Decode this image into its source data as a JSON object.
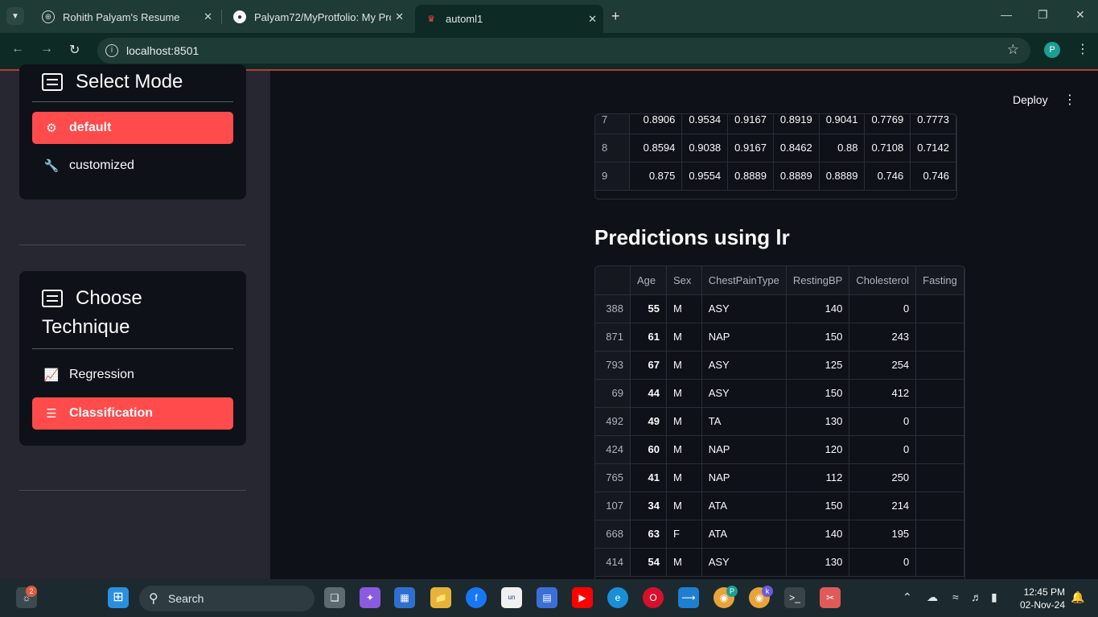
{
  "browser": {
    "tabs": [
      {
        "title": "Rohith Palyam's Resume",
        "favicon": "globe-icon"
      },
      {
        "title": "Palyam72/MyProtfolio: My Prot",
        "favicon": "github-icon"
      },
      {
        "title": "automl1",
        "favicon": "streamlit-icon"
      }
    ],
    "url": "localhost:8501",
    "profile_initial": "P"
  },
  "sidebar": {
    "mode": {
      "title": "Select Mode",
      "options": [
        {
          "label": "default",
          "icon": "gear-icon",
          "selected": true
        },
        {
          "label": "customized",
          "icon": "wrench-icon",
          "selected": false
        }
      ]
    },
    "technique": {
      "title_line1": "Choose",
      "title_line2": "Technique",
      "options": [
        {
          "label": "Regression",
          "icon": "line-chart-icon",
          "selected": false
        },
        {
          "label": "Classification",
          "icon": "list-icon",
          "selected": true
        }
      ]
    }
  },
  "header": {
    "deploy_label": "Deploy"
  },
  "scores_table": {
    "rows": [
      {
        "index": "7",
        "values": [
          "0.8906",
          "0.9534",
          "0.9167",
          "0.8919",
          "0.9041",
          "0.7769",
          "0.7773"
        ]
      },
      {
        "index": "8",
        "values": [
          "0.8594",
          "0.9038",
          "0.9167",
          "0.8462",
          "0.88",
          "0.7108",
          "0.7142"
        ]
      },
      {
        "index": "9",
        "values": [
          "0.875",
          "0.9554",
          "0.8889",
          "0.8889",
          "0.8889",
          "0.746",
          "0.746"
        ]
      }
    ]
  },
  "predictions": {
    "title": "Predictions using lr",
    "columns": [
      "Age",
      "Sex",
      "ChestPainType",
      "RestingBP",
      "Cholesterol",
      "Fasting"
    ],
    "rows": [
      {
        "index": "388",
        "Age": "55",
        "Sex": "M",
        "ChestPainType": "ASY",
        "RestingBP": "140",
        "Cholesterol": "0"
      },
      {
        "index": "871",
        "Age": "61",
        "Sex": "M",
        "ChestPainType": "NAP",
        "RestingBP": "150",
        "Cholesterol": "243"
      },
      {
        "index": "793",
        "Age": "67",
        "Sex": "M",
        "ChestPainType": "ASY",
        "RestingBP": "125",
        "Cholesterol": "254"
      },
      {
        "index": "69",
        "Age": "44",
        "Sex": "M",
        "ChestPainType": "ASY",
        "RestingBP": "150",
        "Cholesterol": "412"
      },
      {
        "index": "492",
        "Age": "49",
        "Sex": "M",
        "ChestPainType": "TA",
        "RestingBP": "130",
        "Cholesterol": "0"
      },
      {
        "index": "424",
        "Age": "60",
        "Sex": "M",
        "ChestPainType": "NAP",
        "RestingBP": "120",
        "Cholesterol": "0"
      },
      {
        "index": "765",
        "Age": "41",
        "Sex": "M",
        "ChestPainType": "NAP",
        "RestingBP": "112",
        "Cholesterol": "250"
      },
      {
        "index": "107",
        "Age": "34",
        "Sex": "M",
        "ChestPainType": "ATA",
        "RestingBP": "150",
        "Cholesterol": "214"
      },
      {
        "index": "668",
        "Age": "63",
        "Sex": "F",
        "ChestPainType": "ATA",
        "RestingBP": "140",
        "Cholesterol": "195"
      },
      {
        "index": "414",
        "Age": "54",
        "Sex": "M",
        "ChestPainType": "ASY",
        "RestingBP": "130",
        "Cholesterol": "0"
      }
    ]
  },
  "taskbar": {
    "search_label": "Search",
    "widget_badge": "2",
    "time": "12:45 PM",
    "date": "02-Nov-24",
    "chrome_profile_badges": [
      "P",
      "k"
    ]
  },
  "colors": {
    "accent": "#ff4b4b",
    "sidebar_bg": "#262730",
    "app_bg": "#0e1117",
    "chrome_tab_bg": "#1f3b35"
  }
}
